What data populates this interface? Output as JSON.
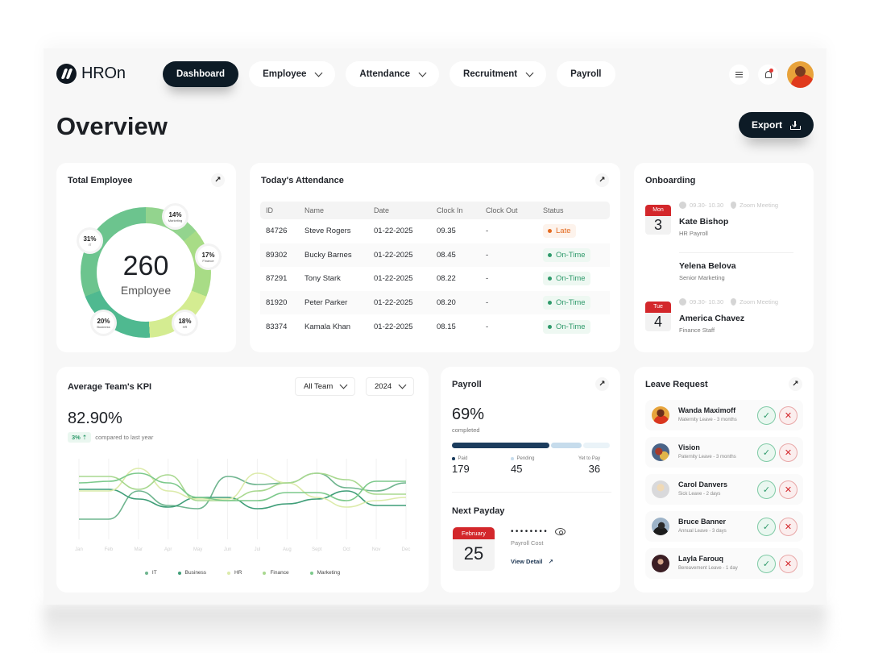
{
  "app": {
    "logo_text": "HROn"
  },
  "nav": {
    "items": [
      {
        "label": "Dashboard",
        "active": true,
        "has_dropdown": false
      },
      {
        "label": "Employee",
        "active": false,
        "has_dropdown": true
      },
      {
        "label": "Attendance",
        "active": false,
        "has_dropdown": true
      },
      {
        "label": "Recruitment",
        "active": false,
        "has_dropdown": true
      },
      {
        "label": "Payroll",
        "active": false,
        "has_dropdown": false
      }
    ],
    "icons": [
      "menu-icon",
      "bell-icon",
      "avatar"
    ]
  },
  "page": {
    "title": "Overview",
    "export_label": "Export"
  },
  "total_employee": {
    "title": "Total Employee",
    "total": "260",
    "total_label": "Employee",
    "segments": [
      {
        "name": "IT",
        "pct": "31%",
        "color": "#6cc48e"
      },
      {
        "name": "Marketing",
        "pct": "14%",
        "color": "#93d48e"
      },
      {
        "name": "Finance",
        "pct": "17%",
        "color": "#a8dc86"
      },
      {
        "name": "HR",
        "pct": "18%",
        "color": "#d4ec91"
      },
      {
        "name": "Business",
        "pct": "20%",
        "color": "#4fb990"
      }
    ]
  },
  "attendance": {
    "title": "Today's Attendance",
    "columns": [
      "ID",
      "Name",
      "Date",
      "Clock In",
      "Clock Out",
      "Status"
    ],
    "rows": [
      {
        "id": "84726",
        "name": "Steve Rogers",
        "date": "01-22-2025",
        "clock_in": "09.35",
        "clock_out": "-",
        "status": "Late"
      },
      {
        "id": "89302",
        "name": "Bucky Barnes",
        "date": "01-22-2025",
        "clock_in": "08.45",
        "clock_out": "-",
        "status": "On-Time"
      },
      {
        "id": "87291",
        "name": "Tony Stark",
        "date": "01-22-2025",
        "clock_in": "08.22",
        "clock_out": "-",
        "status": "On-Time"
      },
      {
        "id": "81920",
        "name": "Peter Parker",
        "date": "01-22-2025",
        "clock_in": "08.20",
        "clock_out": "-",
        "status": "On-Time"
      },
      {
        "id": "83374",
        "name": "Kamala Khan",
        "date": "01-22-2025",
        "clock_in": "08.15",
        "clock_out": "-",
        "status": "On-Time"
      }
    ],
    "status_colors": {
      "Late": "#e46a1f",
      "On-Time": "#2f9a6b"
    }
  },
  "onboarding": {
    "title": "Onboarding",
    "items": [
      {
        "day": "Mon",
        "date": "3",
        "time": "09.30- 10.30",
        "location": "Zoom Meeting",
        "name": "Kate Bishop",
        "role": "HR Payroll"
      },
      {
        "day": "",
        "date": "",
        "time": "",
        "location": "",
        "name": "Yelena Belova",
        "role": "Senior Marketing"
      },
      {
        "day": "Tue",
        "date": "4",
        "time": "09.30- 10.30",
        "location": "Zoom Meeting",
        "name": "America Chavez",
        "role": "Finance Staff"
      }
    ]
  },
  "kpi": {
    "title": "Average Team's KPI",
    "team_select": "All Team",
    "year_select": "2024",
    "value": "82.90%",
    "change": "3%",
    "change_text": "compared to last year"
  },
  "chart_data": {
    "type": "line",
    "title": "Average Team's KPI",
    "categories": [
      "Jan",
      "Feb",
      "Mar",
      "Apr",
      "May",
      "Jun",
      "Jul",
      "Aug",
      "Sept",
      "Oct",
      "Nov",
      "Dec"
    ],
    "xlabel": "",
    "ylabel": "",
    "grid": "vertical",
    "legend_position": "bottom",
    "series": [
      {
        "name": "IT",
        "color": "#6fb58f",
        "values": [
          25,
          25,
          60,
          42,
          38,
          78,
          68,
          70,
          82,
          64,
          60,
          70
        ]
      },
      {
        "name": "Business",
        "color": "#3f9e78",
        "values": [
          62,
          62,
          50,
          40,
          52,
          52,
          38,
          44,
          50,
          60,
          42,
          42
        ]
      },
      {
        "name": "HR",
        "color": "#dcebaa",
        "values": [
          60,
          60,
          88,
          60,
          50,
          50,
          82,
          70,
          52,
          40,
          48,
          52
        ]
      },
      {
        "name": "Finance",
        "color": "#a8d88f",
        "values": [
          78,
          78,
          62,
          80,
          48,
          48,
          60,
          70,
          82,
          74,
          56,
          56
        ]
      },
      {
        "name": "Marketing",
        "color": "#7cc98b",
        "values": [
          70,
          72,
          82,
          70,
          52,
          48,
          48,
          58,
          58,
          48,
          72,
          72
        ]
      }
    ]
  },
  "payroll": {
    "title": "Payroll",
    "percent": "69%",
    "percent_label": "completed",
    "bar_colors": [
      "#1c3d5e",
      "#c6dcec",
      "#e8f2f8"
    ],
    "stats": [
      {
        "label": "Paid",
        "value": "179",
        "color": "#1c3d5e"
      },
      {
        "label": "Pending",
        "value": "45",
        "color": "#c6dcec"
      },
      {
        "label": "Yet to Pay",
        "value": "36",
        "color": "#eef4f8"
      }
    ],
    "next_payday_title": "Next Payday",
    "payday_month": "February",
    "payday_date": "25",
    "masked_cost": "••••••••",
    "cost_label": "Payroll Cost",
    "view_detail": "View Detail"
  },
  "leave": {
    "title": "Leave Request",
    "items": [
      {
        "name": "Wanda Maximoff",
        "type": "Maternity Leave - 3 months"
      },
      {
        "name": "Vision",
        "type": "Paternity Leave - 3 months"
      },
      {
        "name": "Carol Danvers",
        "type": "Sick Leave - 2 days"
      },
      {
        "name": "Bruce Banner",
        "type": "Annual Leave - 3 days"
      },
      {
        "name": "Layla Farouq",
        "type": "Bereavement Leave - 1 day"
      }
    ]
  }
}
